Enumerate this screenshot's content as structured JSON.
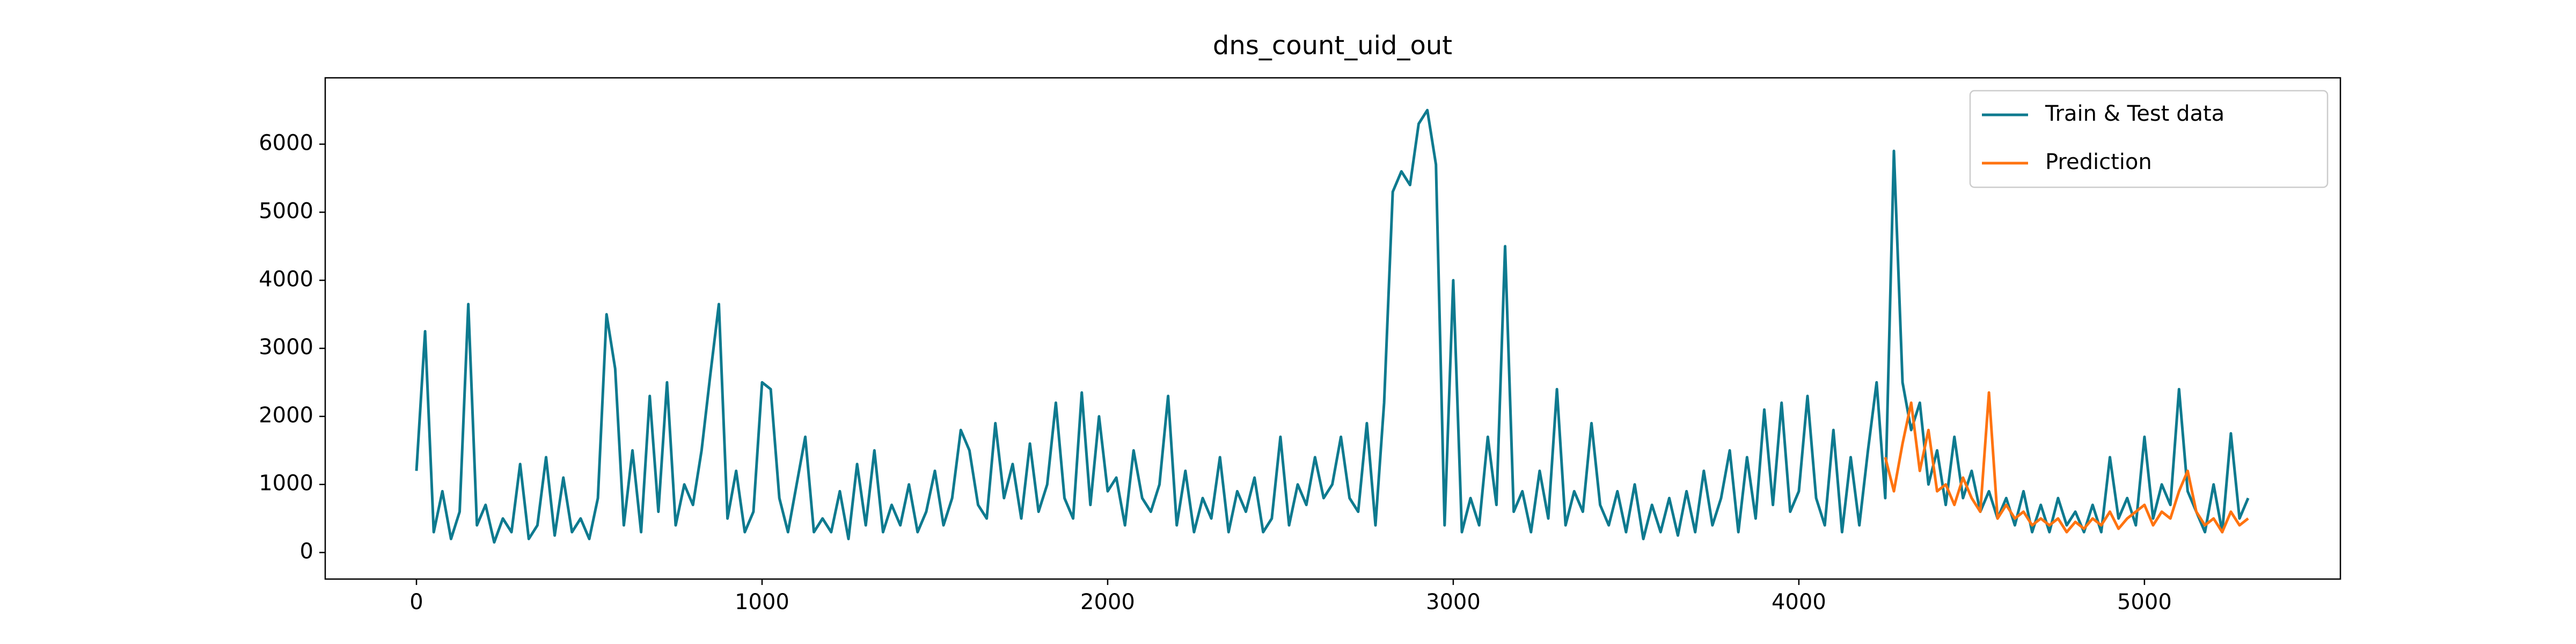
{
  "chart_data": {
    "type": "line",
    "title": "dns_count_uid_out",
    "series": [
      {
        "name": "Train & Test data",
        "color": "#0e7a8f",
        "x": [
          0,
          25,
          50,
          75,
          100,
          125,
          150,
          175,
          200,
          225,
          250,
          275,
          300,
          325,
          350,
          375,
          400,
          425,
          450,
          475,
          500,
          525,
          550,
          575,
          600,
          625,
          650,
          675,
          700,
          725,
          750,
          775,
          800,
          825,
          850,
          875,
          900,
          925,
          950,
          975,
          1000,
          1025,
          1050,
          1075,
          1100,
          1125,
          1150,
          1175,
          1200,
          1225,
          1250,
          1275,
          1300,
          1325,
          1350,
          1375,
          1400,
          1425,
          1450,
          1475,
          1500,
          1525,
          1550,
          1575,
          1600,
          1625,
          1650,
          1675,
          1700,
          1725,
          1750,
          1775,
          1800,
          1825,
          1850,
          1875,
          1900,
          1925,
          1950,
          1975,
          2000,
          2025,
          2050,
          2075,
          2100,
          2125,
          2150,
          2175,
          2200,
          2225,
          2250,
          2275,
          2300,
          2325,
          2350,
          2375,
          2400,
          2425,
          2450,
          2475,
          2500,
          2525,
          2550,
          2575,
          2600,
          2625,
          2650,
          2675,
          2700,
          2725,
          2750,
          2775,
          2800,
          2825,
          2850,
          2875,
          2900,
          2925,
          2950,
          2975,
          3000,
          3025,
          3050,
          3075,
          3100,
          3125,
          3150,
          3175,
          3200,
          3225,
          3250,
          3275,
          3300,
          3325,
          3350,
          3375,
          3400,
          3425,
          3450,
          3475,
          3500,
          3525,
          3550,
          3575,
          3600,
          3625,
          3650,
          3675,
          3700,
          3725,
          3750,
          3775,
          3800,
          3825,
          3850,
          3875,
          3900,
          3925,
          3950,
          3975,
          4000,
          4025,
          4050,
          4075,
          4100,
          4125,
          4150,
          4175,
          4200,
          4225,
          4250,
          4275,
          4300,
          4325,
          4350,
          4375,
          4400,
          4425,
          4450,
          4475,
          4500,
          4525,
          4550,
          4575,
          4600,
          4625,
          4650,
          4675,
          4700,
          4725,
          4750,
          4775,
          4800,
          4825,
          4850,
          4875,
          4900,
          4925,
          4950,
          4975,
          5000,
          5025,
          5050,
          5075,
          5100,
          5125,
          5150,
          5175,
          5200,
          5225,
          5250,
          5275,
          5300
        ],
        "values": [
          1200,
          3250,
          300,
          900,
          200,
          600,
          3650,
          400,
          700,
          150,
          500,
          300,
          1300,
          200,
          400,
          1400,
          250,
          1100,
          300,
          500,
          200,
          800,
          3500,
          2700,
          400,
          1500,
          300,
          2300,
          600,
          2500,
          400,
          1000,
          700,
          1500,
          2600,
          3650,
          500,
          1200,
          300,
          600,
          2500,
          2400,
          800,
          300,
          1000,
          1700,
          300,
          500,
          300,
          900,
          200,
          1300,
          400,
          1500,
          300,
          700,
          400,
          1000,
          300,
          600,
          1200,
          400,
          800,
          1800,
          1500,
          700,
          500,
          1900,
          800,
          1300,
          500,
          1600,
          600,
          1000,
          2200,
          800,
          500,
          2350,
          700,
          2000,
          900,
          1100,
          400,
          1500,
          800,
          600,
          1000,
          2300,
          400,
          1200,
          300,
          800,
          500,
          1400,
          300,
          900,
          600,
          1100,
          300,
          500,
          1700,
          400,
          1000,
          700,
          1400,
          800,
          1000,
          1700,
          800,
          600,
          1900,
          400,
          2200,
          5300,
          5600,
          5400,
          6300,
          6500,
          5700,
          400,
          4000,
          300,
          800,
          400,
          1700,
          700,
          4500,
          600,
          900,
          300,
          1200,
          500,
          2400,
          400,
          900,
          600,
          1900,
          700,
          400,
          900,
          300,
          1000,
          200,
          700,
          300,
          800,
          250,
          900,
          300,
          1200,
          400,
          800,
          1500,
          300,
          1400,
          500,
          2100,
          700,
          2200,
          600,
          900,
          2300,
          800,
          400,
          1800,
          300,
          1400,
          400,
          1500,
          2500,
          800,
          5900,
          2500,
          1800,
          2200,
          1000,
          1500,
          700,
          1700,
          800,
          1200,
          600,
          900,
          500,
          800,
          400,
          900,
          300,
          700,
          300,
          800,
          400,
          600,
          300,
          700,
          300,
          1400,
          500,
          800,
          400,
          1700,
          500,
          1000,
          700,
          2400,
          900,
          600,
          300,
          1000,
          300,
          1750,
          500,
          800
        ]
      },
      {
        "name": "Prediction",
        "color": "#ff7310",
        "x": [
          4250,
          4275,
          4300,
          4325,
          4350,
          4375,
          4400,
          4425,
          4450,
          4475,
          4500,
          4525,
          4550,
          4575,
          4600,
          4625,
          4650,
          4675,
          4700,
          4725,
          4750,
          4775,
          4800,
          4825,
          4850,
          4875,
          4900,
          4925,
          4950,
          4975,
          5000,
          5025,
          5050,
          5075,
          5100,
          5125,
          5150,
          5175,
          5200,
          5225,
          5250,
          5275,
          5300
        ],
        "values": [
          1400,
          900,
          1600,
          2200,
          1200,
          1800,
          900,
          1000,
          700,
          1100,
          800,
          600,
          2350,
          500,
          700,
          500,
          600,
          400,
          500,
          400,
          500,
          300,
          450,
          350,
          500,
          400,
          600,
          350,
          500,
          600,
          700,
          400,
          600,
          500,
          900,
          1200,
          600,
          400,
          500,
          300,
          600,
          400,
          500
        ]
      }
    ],
    "xlim": [
      -264,
      5567
    ],
    "ylim": [
      -390,
      6975
    ],
    "xticks": [
      0,
      1000,
      2000,
      3000,
      4000,
      5000
    ],
    "yticks": [
      0,
      1000,
      2000,
      3000,
      4000,
      5000,
      6000
    ],
    "legend": "upper right"
  }
}
